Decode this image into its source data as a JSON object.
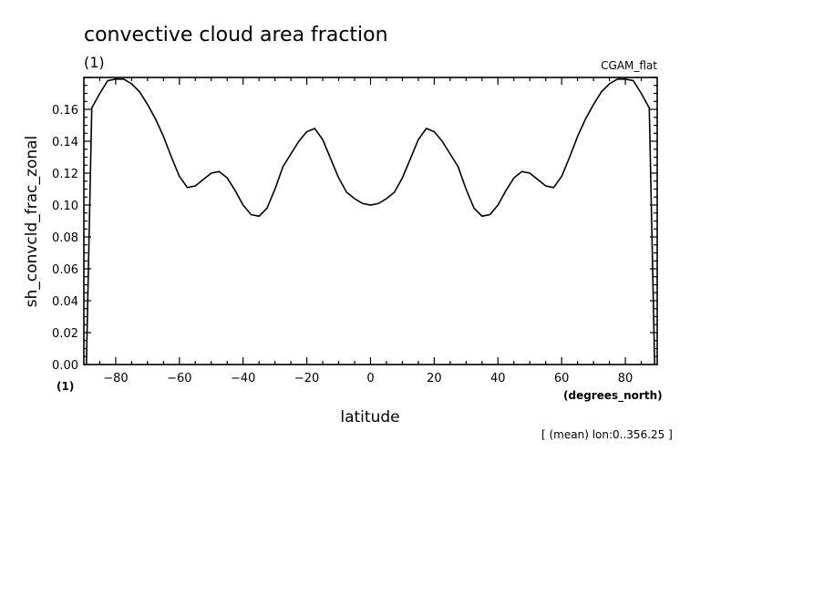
{
  "chart_data": {
    "type": "line",
    "title": "convective cloud area fraction",
    "subtitle": "(1)",
    "dataset": "CGAM_flat",
    "ylabel": "sh_convcld_frac_zonal",
    "y_unit": "(1)",
    "xlabel": "latitude",
    "x_unit": "(degrees_north)",
    "note": "[ (mean) lon:0..356.25 ]",
    "xlim": [
      -90,
      90
    ],
    "ylim": [
      0.0,
      0.18
    ],
    "x_ticks": [
      -80,
      -60,
      -40,
      -20,
      0,
      20,
      40,
      60,
      80
    ],
    "y_ticks": [
      0.0,
      0.02,
      0.04,
      0.06,
      0.08,
      0.1,
      0.12,
      0.14,
      0.16
    ],
    "x_tick_labels": [
      "−80",
      "−60",
      "−40",
      "−20",
      "0",
      "20",
      "40",
      "60",
      "80"
    ],
    "y_tick_labels": [
      "0.00",
      "0.02",
      "0.04",
      "0.06",
      "0.08",
      "0.10",
      "0.12",
      "0.14",
      "0.16"
    ],
    "series": [
      {
        "line_color": "#000000",
        "x": [
          -89.2,
          -87.5,
          -85,
          -82.5,
          -80,
          -77.5,
          -75,
          -72.5,
          -70,
          -67.5,
          -65,
          -62.5,
          -60,
          -57.5,
          -55,
          -52.5,
          -50,
          -47.5,
          -45,
          -42.5,
          -40,
          -37.5,
          -35,
          -32.5,
          -30,
          -27.5,
          -25,
          -22.5,
          -20,
          -17.5,
          -15,
          -12.5,
          -10,
          -7.5,
          -5,
          -2.5,
          0,
          2.5,
          5,
          7.5,
          10,
          12.5,
          15,
          17.5,
          20,
          22.5,
          25,
          27.5,
          30,
          32.5,
          35,
          37.5,
          40,
          42.5,
          45,
          47.5,
          50,
          52.5,
          55,
          57.5,
          60,
          62.5,
          65,
          67.5,
          70,
          72.5,
          75,
          77.5,
          80,
          82.5,
          85,
          87.5,
          89.2
        ],
        "y": [
          0.0,
          0.161,
          0.17,
          0.178,
          0.179,
          0.179,
          0.176,
          0.171,
          0.163,
          0.154,
          0.143,
          0.13,
          0.118,
          0.111,
          0.112,
          0.116,
          0.12,
          0.121,
          0.117,
          0.109,
          0.1,
          0.094,
          0.093,
          0.098,
          0.11,
          0.124,
          0.132,
          0.14,
          0.146,
          0.148,
          0.141,
          0.129,
          0.117,
          0.108,
          0.104,
          0.101,
          0.1,
          0.101,
          0.104,
          0.108,
          0.117,
          0.129,
          0.141,
          0.148,
          0.146,
          0.14,
          0.132,
          0.124,
          0.11,
          0.098,
          0.093,
          0.094,
          0.1,
          0.109,
          0.117,
          0.121,
          0.12,
          0.116,
          0.112,
          0.111,
          0.118,
          0.13,
          0.143,
          0.154,
          0.163,
          0.171,
          0.176,
          0.179,
          0.179,
          0.178,
          0.17,
          0.161,
          0.0
        ]
      }
    ]
  }
}
